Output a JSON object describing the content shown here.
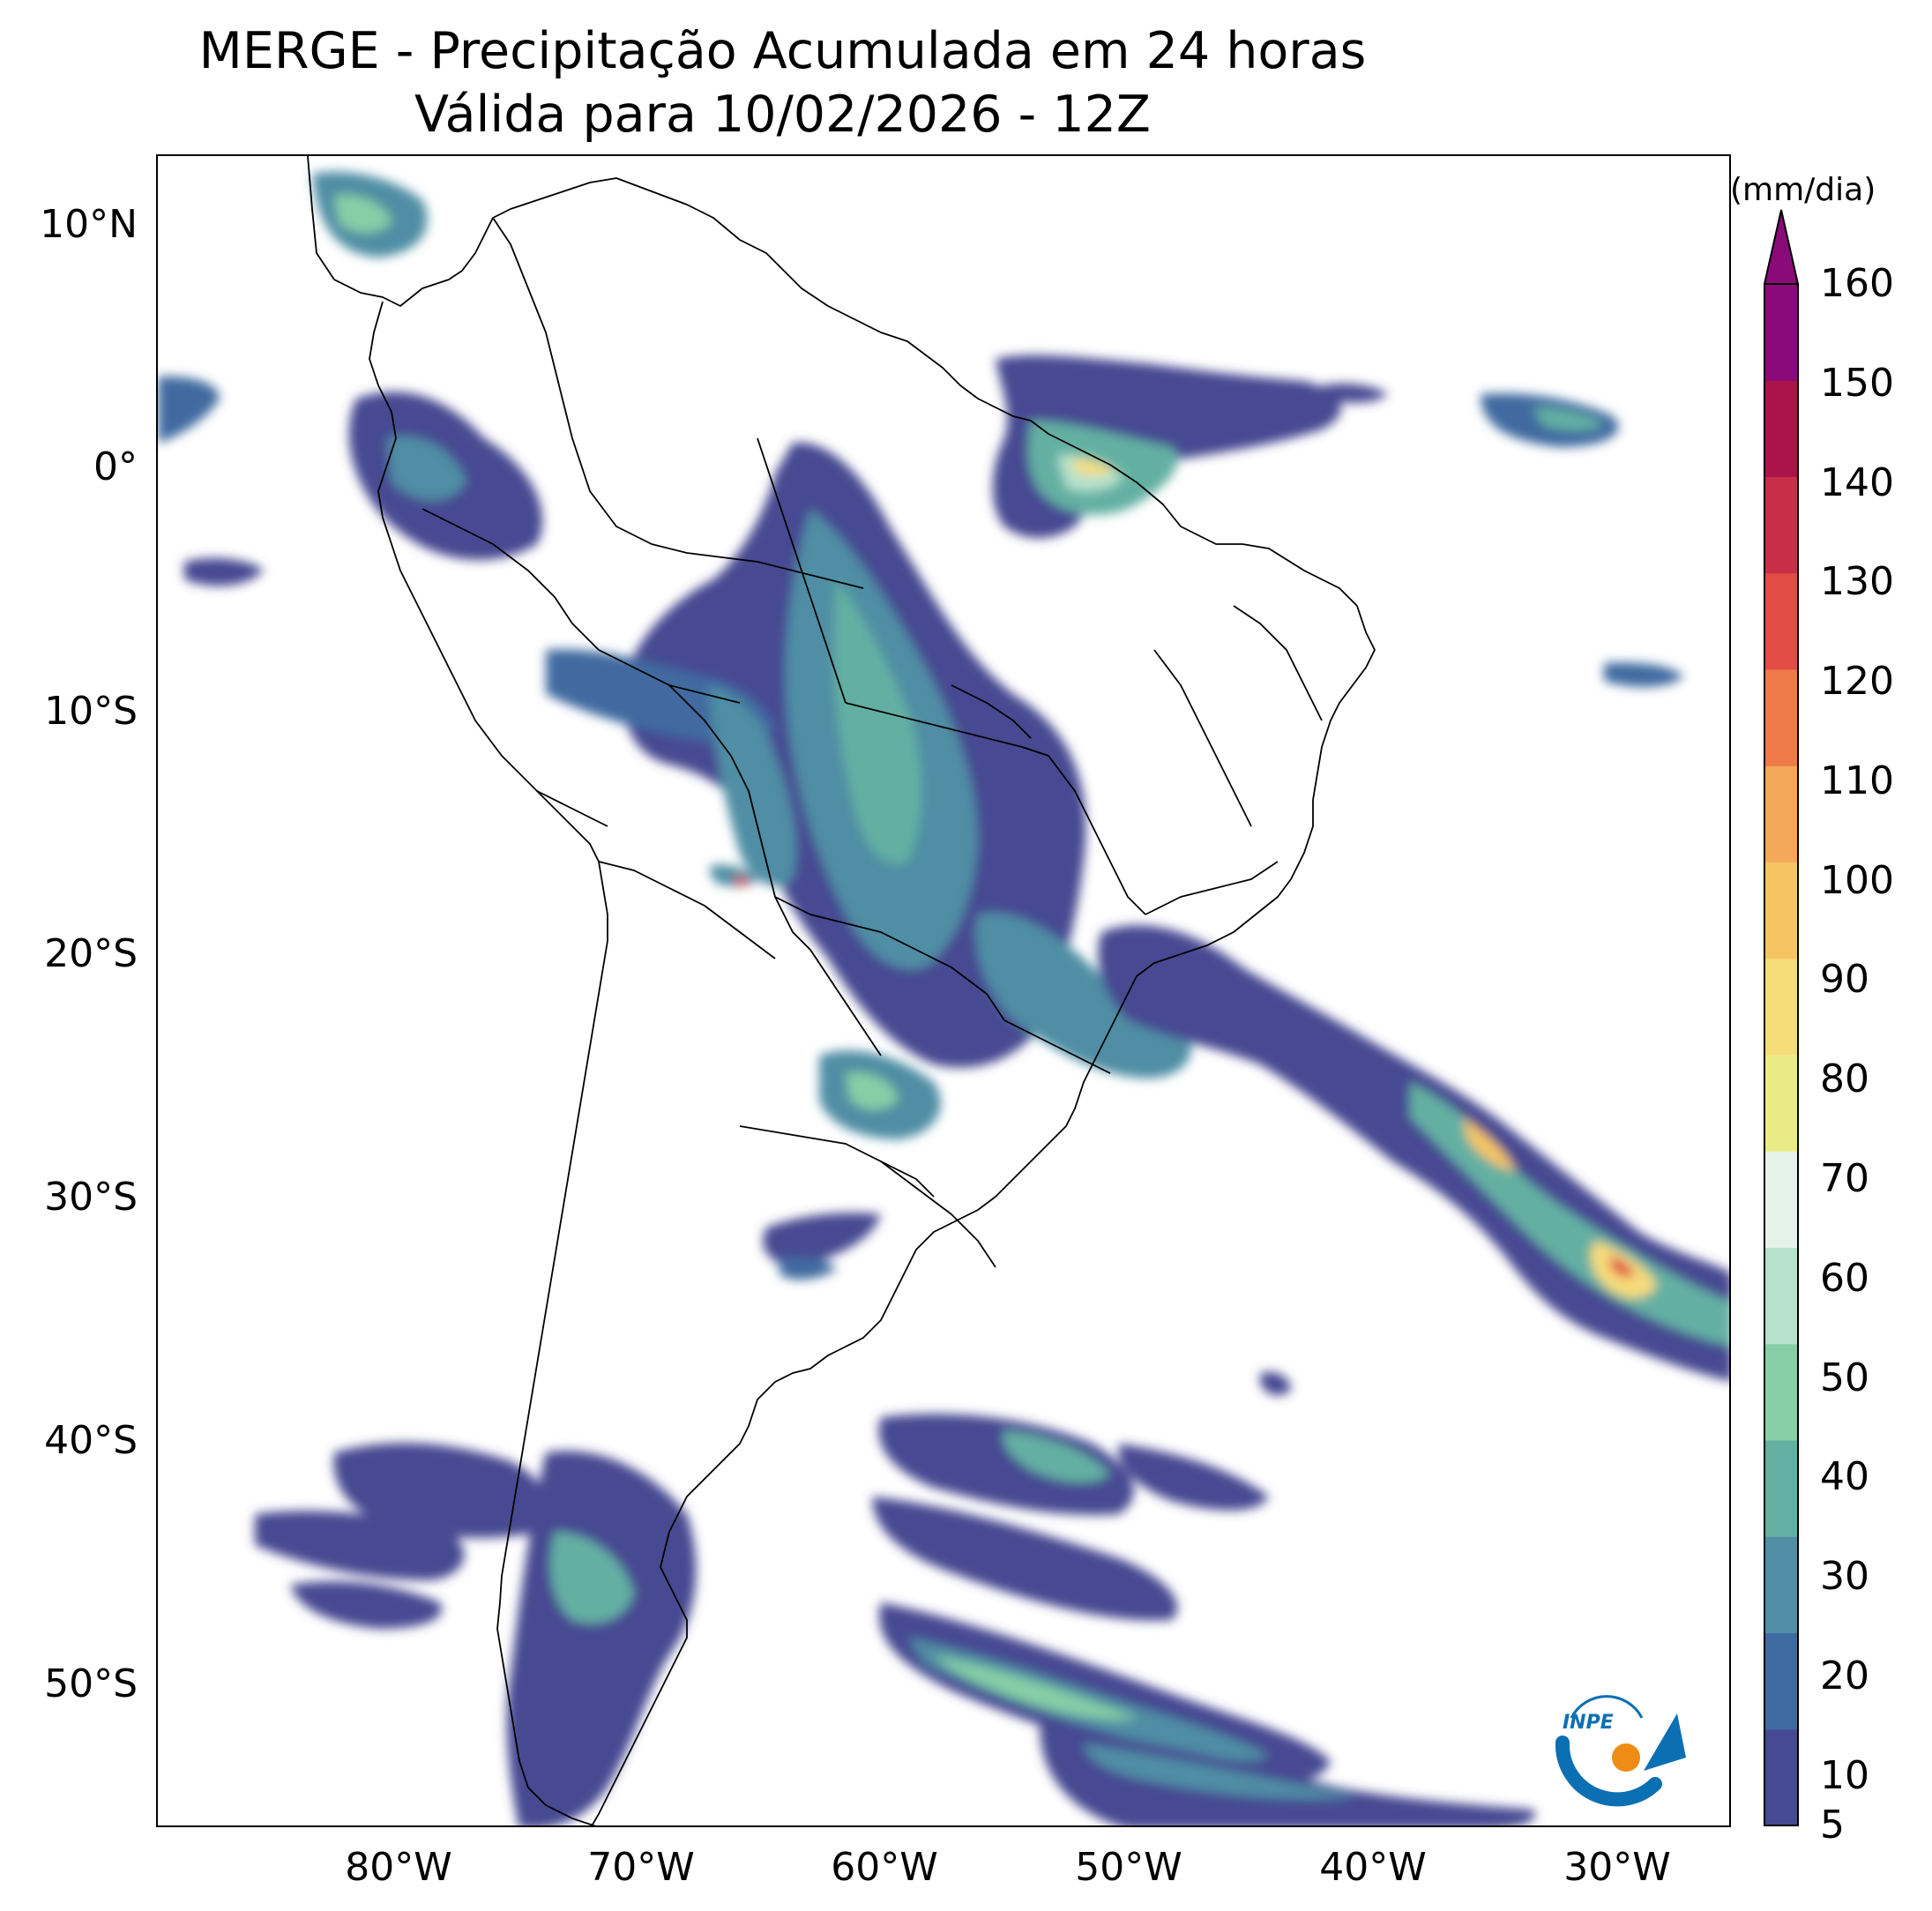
{
  "title": {
    "line1": "MERGE - Precipitação Acumulada em 24 horas",
    "line2": "Válida para 10/02/2026 - 12Z"
  },
  "axes": {
    "lat_labels": [
      "10°N",
      "0°",
      "10°S",
      "20°S",
      "30°S",
      "40°S",
      "50°S"
    ],
    "lon_labels": [
      "80°W",
      "70°W",
      "60°W",
      "50°W",
      "40°W",
      "30°W"
    ]
  },
  "colorbar": {
    "unit": "(mm/dia)",
    "tick_labels": [
      "5",
      "10",
      "20",
      "30",
      "40",
      "50",
      "60",
      "70",
      "80",
      "90",
      "100",
      "110",
      "120",
      "130",
      "140",
      "150",
      "160"
    ],
    "colors": [
      "#464a92",
      "#3f6aa0",
      "#4f8ea4",
      "#64b0a3",
      "#86cfa6",
      "#b6e2cd",
      "#e5f2ea",
      "#e9ec86",
      "#f7dc7a",
      "#f6c563",
      "#f4a85a",
      "#ef7a4a",
      "#e14d45",
      "#c62f47",
      "#a9154a",
      "#8b0a7a"
    ]
  },
  "map": {
    "projection": "Plate Carree",
    "lon_range": [
      -91,
      -25
    ],
    "lat_range": [
      -56,
      13
    ],
    "features": [
      "country borders",
      "Brazilian state borders",
      "coastlines",
      "precipitation contours"
    ]
  },
  "logo": {
    "text": "INPE",
    "colors": {
      "blue": "#0b6fb4",
      "orange": "#ef8c13"
    }
  }
}
